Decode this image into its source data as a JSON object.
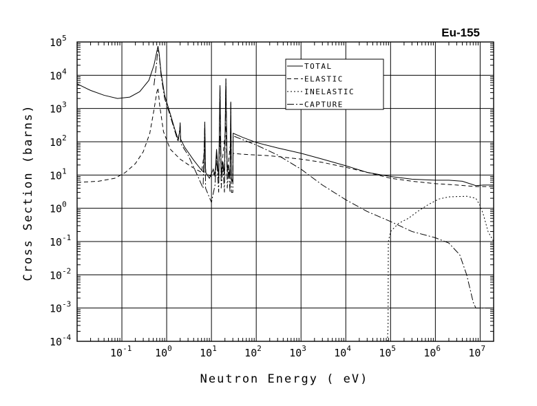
{
  "chart_data": {
    "type": "line",
    "title": "Eu-155",
    "xlabel": "Neutron Energy ( eV)",
    "ylabel": "Cross Section (barns)",
    "x_scale": "log",
    "y_scale": "log",
    "xlim": [
      0.01,
      20000000
    ],
    "ylim": [
      0.0001,
      100000
    ],
    "grid": true,
    "legend_position": "top-center",
    "x_ticks": [
      {
        "value": 0.1,
        "base": "10",
        "exp": "-1"
      },
      {
        "value": 1,
        "base": "10",
        "exp": "0"
      },
      {
        "value": 10,
        "base": "10",
        "exp": "1"
      },
      {
        "value": 100,
        "base": "10",
        "exp": "2"
      },
      {
        "value": 1000,
        "base": "10",
        "exp": "3"
      },
      {
        "value": 10000,
        "base": "10",
        "exp": "4"
      },
      {
        "value": 100000,
        "base": "10",
        "exp": "5"
      },
      {
        "value": 1000000,
        "base": "10",
        "exp": "6"
      },
      {
        "value": 10000000,
        "base": "10",
        "exp": "7"
      }
    ],
    "y_ticks": [
      {
        "value": 100000,
        "base": "10",
        "exp": "5"
      },
      {
        "value": 10000,
        "base": "10",
        "exp": "4"
      },
      {
        "value": 1000,
        "base": "10",
        "exp": "3"
      },
      {
        "value": 100,
        "base": "10",
        "exp": "2"
      },
      {
        "value": 10,
        "base": "10",
        "exp": "1"
      },
      {
        "value": 1,
        "base": "10",
        "exp": "0"
      },
      {
        "value": 0.1,
        "base": "10",
        "exp": "-1"
      },
      {
        "value": 0.01,
        "base": "10",
        "exp": "-2"
      },
      {
        "value": 0.001,
        "base": "10",
        "exp": "-3"
      },
      {
        "value": 0.0001,
        "base": "10",
        "exp": "-4"
      }
    ],
    "series": [
      {
        "name": "TOTAL",
        "dash": "",
        "points": [
          [
            0.01,
            5500
          ],
          [
            0.02,
            3500
          ],
          [
            0.04,
            2500
          ],
          [
            0.08,
            2000
          ],
          [
            0.15,
            2200
          ],
          [
            0.25,
            3200
          ],
          [
            0.4,
            7000
          ],
          [
            0.52,
            20000
          ],
          [
            0.6,
            50000
          ],
          [
            0.64,
            75000
          ],
          [
            0.68,
            45000
          ],
          [
            0.75,
            12000
          ],
          [
            0.9,
            2500
          ],
          [
            1.2,
            700
          ],
          [
            1.5,
            250
          ],
          [
            1.8,
            120
          ],
          [
            1.95,
            200
          ],
          [
            2.0,
            380
          ],
          [
            2.05,
            120
          ],
          [
            2.5,
            70
          ],
          [
            4,
            28
          ],
          [
            6,
            14
          ],
          [
            6.8,
            12
          ],
          [
            7.1,
            400
          ],
          [
            7.4,
            12
          ],
          [
            9,
            8
          ],
          [
            11,
            15
          ],
          [
            12,
            9
          ],
          [
            13,
            60
          ],
          [
            14.5,
            8
          ],
          [
            15.5,
            5000
          ],
          [
            16.5,
            10
          ],
          [
            18,
            25
          ],
          [
            19.5,
            10
          ],
          [
            21,
            8000
          ],
          [
            22.5,
            12
          ],
          [
            24,
            20
          ],
          [
            26,
            8
          ],
          [
            27,
            1600
          ],
          [
            28,
            8
          ],
          [
            30,
            6
          ],
          [
            30.5,
            180
          ],
          [
            50,
            135
          ],
          [
            100,
            95
          ],
          [
            300,
            65
          ],
          [
            1000,
            45
          ],
          [
            3000,
            30
          ],
          [
            10000,
            19
          ],
          [
            30000,
            12
          ],
          [
            100000,
            9
          ],
          [
            300000,
            7.5
          ],
          [
            1000000,
            7
          ],
          [
            2000000,
            7
          ],
          [
            4000000,
            6.5
          ],
          [
            8000000,
            4.8
          ],
          [
            12000000,
            5
          ],
          [
            20000000,
            5
          ]
        ]
      },
      {
        "name": "ELASTIC",
        "dash": "6 4",
        "points": [
          [
            0.01,
            6
          ],
          [
            0.03,
            6.5
          ],
          [
            0.07,
            8
          ],
          [
            0.12,
            12
          ],
          [
            0.2,
            22
          ],
          [
            0.3,
            50
          ],
          [
            0.42,
            180
          ],
          [
            0.52,
            900
          ],
          [
            0.6,
            3000
          ],
          [
            0.64,
            4200
          ],
          [
            0.7,
            1200
          ],
          [
            0.85,
            200
          ],
          [
            1.2,
            60
          ],
          [
            2,
            30
          ],
          [
            3.5,
            18
          ],
          [
            6,
            12
          ],
          [
            7.1,
            60
          ],
          [
            7.5,
            11
          ],
          [
            10,
            9
          ],
          [
            12,
            12
          ],
          [
            13,
            25
          ],
          [
            14.5,
            10
          ],
          [
            15.5,
            150
          ],
          [
            16.5,
            12
          ],
          [
            21,
            300
          ],
          [
            22.5,
            12
          ],
          [
            27,
            100
          ],
          [
            28,
            10
          ],
          [
            30,
            9
          ],
          [
            30.5,
            45
          ],
          [
            50,
            42
          ],
          [
            200,
            38
          ],
          [
            1000,
            30
          ],
          [
            3000,
            24
          ],
          [
            10000,
            17
          ],
          [
            30000,
            12
          ],
          [
            100000,
            8
          ],
          [
            300000,
            6.5
          ],
          [
            1000000,
            5.5
          ],
          [
            3000000,
            5
          ],
          [
            8000000,
            4.5
          ],
          [
            12000000,
            4.5
          ],
          [
            20000000,
            4.5
          ]
        ]
      },
      {
        "name": "INELASTIC",
        "dash": "2 3",
        "points": [
          [
            85000,
            0.0001
          ],
          [
            88000,
            0.0003
          ],
          [
            89000,
            0.1
          ],
          [
            100000,
            0.2
          ],
          [
            150000,
            0.35
          ],
          [
            250000,
            0.5
          ],
          [
            400000,
            0.8
          ],
          [
            700000,
            1.3
          ],
          [
            1200000,
            1.9
          ],
          [
            2000000,
            2.2
          ],
          [
            5000000,
            2.3
          ],
          [
            8000000,
            2.0
          ],
          [
            10000000,
            1.2
          ],
          [
            12000000,
            0.6
          ],
          [
            15000000,
            0.2
          ],
          [
            20000000,
            0.1
          ]
        ]
      },
      {
        "name": "CAPTURE",
        "dash": "10 3 2 3",
        "points": [
          [
            0.52,
            5000
          ],
          [
            0.6,
            25000
          ],
          [
            0.64,
            70000
          ],
          [
            0.68,
            40000
          ],
          [
            0.75,
            10000
          ],
          [
            0.9,
            2000
          ],
          [
            1.2,
            600
          ],
          [
            1.8,
            100
          ],
          [
            2.0,
            300
          ],
          [
            2.05,
            90
          ],
          [
            3,
            40
          ],
          [
            5,
            9
          ],
          [
            6.5,
            4
          ],
          [
            7.1,
            350
          ],
          [
            7.4,
            4
          ],
          [
            10,
            1.5
          ],
          [
            12,
            5
          ],
          [
            13,
            40
          ],
          [
            14.5,
            3
          ],
          [
            15.5,
            4800
          ],
          [
            16.5,
            4
          ],
          [
            18,
            20
          ],
          [
            19.5,
            3
          ],
          [
            21,
            7800
          ],
          [
            22.5,
            4
          ],
          [
            24,
            15
          ],
          [
            26,
            3
          ],
          [
            27,
            1550
          ],
          [
            28,
            3
          ],
          [
            30,
            3
          ],
          [
            30.5,
            150
          ],
          [
            100,
            80
          ],
          [
            300,
            40
          ],
          [
            1000,
            15
          ],
          [
            3000,
            5
          ],
          [
            10000,
            1.8
          ],
          [
            30000,
            0.8
          ],
          [
            100000,
            0.4
          ],
          [
            300000,
            0.2
          ],
          [
            1000000,
            0.13
          ],
          [
            2000000,
            0.09
          ],
          [
            3500000,
            0.04
          ],
          [
            5000000,
            0.01
          ],
          [
            7000000,
            0.0015
          ],
          [
            8000000,
            0.001
          ],
          [
            20000000,
            0.001
          ]
        ]
      }
    ]
  }
}
